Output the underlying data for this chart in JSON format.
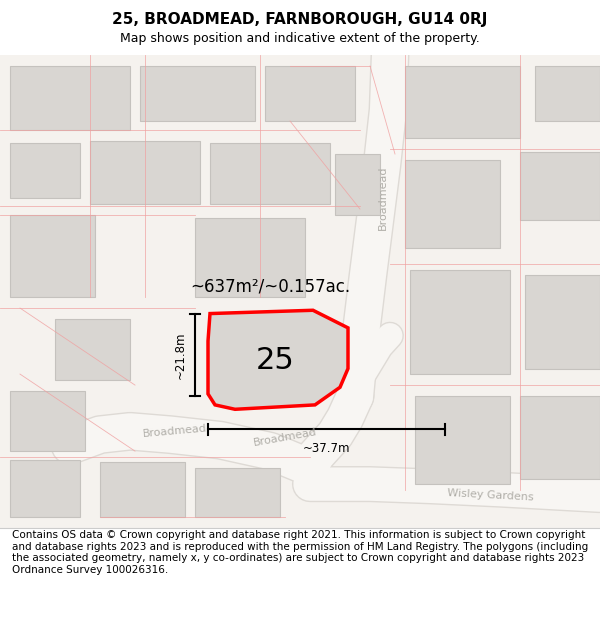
{
  "title": "25, BROADMEAD, FARNBOROUGH, GU14 0RJ",
  "subtitle": "Map shows position and indicative extent of the property.",
  "footer": "Contains OS data © Crown copyright and database right 2021. This information is subject to Crown copyright and database rights 2023 and is reproduced with the permission of HM Land Registry. The polygons (including the associated geometry, namely x, y co-ordinates) are subject to Crown copyright and database rights 2023 Ordnance Survey 100026316.",
  "area_label": "~637m²/~0.157ac.",
  "number_label": "25",
  "width_label": "~37.7m",
  "height_label": "~21.8m",
  "map_bg": "#f5f3f0",
  "road_bg": "#ffffff",
  "building_fill": "#d9d6d2",
  "building_edge": "#c5c2be",
  "plot_fill": "#d9d6d2",
  "plot_outline": "#ff0000",
  "road_line_color": "#f0a0a0",
  "street_label_color": "#b0aea8",
  "title_fontsize": 11,
  "subtitle_fontsize": 9,
  "footer_fontsize": 7.5,
  "figsize": [
    6.0,
    6.25
  ],
  "dpi": 100
}
